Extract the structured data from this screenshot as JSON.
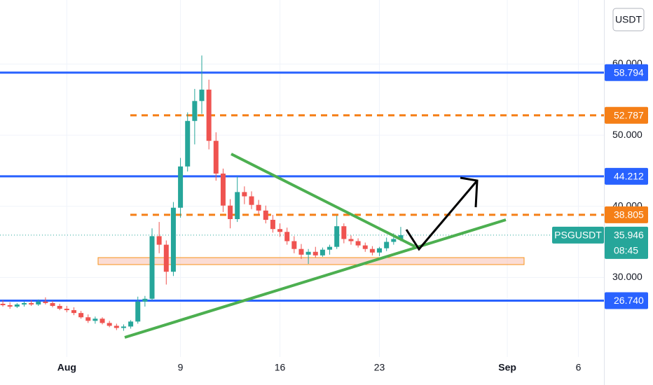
{
  "chart_data": {
    "type": "candlestick",
    "currency": "USDT",
    "symbol": "PSGUSDT",
    "countdown": "08:45",
    "up_color": "#26a69a",
    "down_color": "#ef5350",
    "xlim": [
      -3.7,
      38.8
    ],
    "ylim": [
      19.8,
      69.0
    ],
    "xticks": [
      {
        "value": 1,
        "label": "Aug"
      },
      9,
      16,
      23,
      {
        "value": 32,
        "label": "Sep"
      },
      {
        "value": 37,
        "label": "6"
      }
    ],
    "yticks": [
      {
        "value": 30,
        "label": "30.000"
      },
      {
        "value": 40,
        "label": "40.000"
      },
      {
        "value": 50,
        "label": "50.000"
      },
      {
        "value": 60,
        "label": "60.000"
      }
    ],
    "grid": true,
    "x": [
      -3.5,
      -3,
      -2.5,
      -2,
      -1.5,
      -1,
      -0.5,
      0,
      0.5,
      1,
      1.5,
      2,
      2.5,
      3,
      3.5,
      4,
      4.5,
      5,
      5.5,
      6,
      6.5,
      7,
      7.5,
      8,
      8.5,
      9,
      9.5,
      10,
      10.5,
      11,
      11.5,
      12,
      12.5,
      13,
      13.5,
      14,
      14.5,
      15,
      15.5,
      16,
      16.5,
      17,
      17.5,
      18,
      18.5,
      19,
      19.5,
      20,
      20.5,
      21,
      21.5,
      22,
      22.5,
      23,
      23.5,
      24,
      24.5
    ],
    "open": [
      26.3,
      26.1,
      25.9,
      26.2,
      26.4,
      26.2,
      26.6,
      26.4,
      26.0,
      25.6,
      25.4,
      25.0,
      24.4,
      23.9,
      24.2,
      23.6,
      23.2,
      22.9,
      23.1,
      23.8,
      26.6,
      27.0,
      35.8,
      34.6,
      30.8,
      39.8,
      45.6,
      52.0,
      54.8,
      56.4,
      49.2,
      44.6,
      40.1,
      38.2,
      42.0,
      41.4,
      40.2,
      39.4,
      38.1,
      36.8,
      36.4,
      35.1,
      34.0,
      33.2,
      33.6,
      33.1,
      33.9,
      34.3,
      37.2,
      35.4,
      35.1,
      34.5,
      34.0,
      33.5,
      34.1,
      35.0,
      35.4
    ],
    "high": [
      26.8,
      26.5,
      26.4,
      26.6,
      26.8,
      26.9,
      27.2,
      26.7,
      26.3,
      26.0,
      25.8,
      25.3,
      24.8,
      24.5,
      24.4,
      23.9,
      23.5,
      23.4,
      24.0,
      27.3,
      27.4,
      36.9,
      37.8,
      35.2,
      40.6,
      46.8,
      53.2,
      56.5,
      61.2,
      57.8,
      50.4,
      45.3,
      41.0,
      44.2,
      42.8,
      42.1,
      40.9,
      40.1,
      38.8,
      37.6,
      37.0,
      35.8,
      34.7,
      34.0,
      34.3,
      34.2,
      34.6,
      38.7,
      37.6,
      35.9,
      35.5,
      34.9,
      34.4,
      34.3,
      35.6,
      36.2,
      37.1
    ],
    "low": [
      25.9,
      25.6,
      25.7,
      25.9,
      26.0,
      26.0,
      26.2,
      25.8,
      25.4,
      25.1,
      24.7,
      24.2,
      23.6,
      23.5,
      23.4,
      23.0,
      22.6,
      22.5,
      22.8,
      23.5,
      25.9,
      26.8,
      33.4,
      29.0,
      30.2,
      38.4,
      44.9,
      48.7,
      53.0,
      48.0,
      43.6,
      39.2,
      36.9,
      37.8,
      40.3,
      39.6,
      38.9,
      37.6,
      36.3,
      35.7,
      34.6,
      33.4,
      32.6,
      31.9,
      32.8,
      32.9,
      33.2,
      34.0,
      34.8,
      34.6,
      34.2,
      33.6,
      33.1,
      33.0,
      33.7,
      34.6,
      35.1
    ],
    "close": [
      26.1,
      25.9,
      26.2,
      26.4,
      26.2,
      26.6,
      26.4,
      26.0,
      25.6,
      25.4,
      25.0,
      24.4,
      23.9,
      24.2,
      23.6,
      23.2,
      22.9,
      23.1,
      23.8,
      26.6,
      27.0,
      35.8,
      34.6,
      30.8,
      39.8,
      45.6,
      52.0,
      54.8,
      56.4,
      49.2,
      44.6,
      40.1,
      38.2,
      42.0,
      41.4,
      40.2,
      39.4,
      38.1,
      36.8,
      36.4,
      35.1,
      34.0,
      33.2,
      33.6,
      33.1,
      33.9,
      34.3,
      37.2,
      35.4,
      35.1,
      34.5,
      34.0,
      33.5,
      34.1,
      35.0,
      35.4,
      35.946
    ],
    "levels": [
      {
        "value": 58.794,
        "color": "#2962ff",
        "style": "solid"
      },
      {
        "value": 52.787,
        "color": "#f57f17",
        "style": "dashed"
      },
      {
        "value": 44.212,
        "color": "#2962ff",
        "style": "solid"
      },
      {
        "value": 38.805,
        "color": "#f57f17",
        "style": "dashed"
      },
      {
        "value": 26.74,
        "label": "26.740",
        "color": "#2962ff",
        "style": "solid"
      }
    ]
  }
}
